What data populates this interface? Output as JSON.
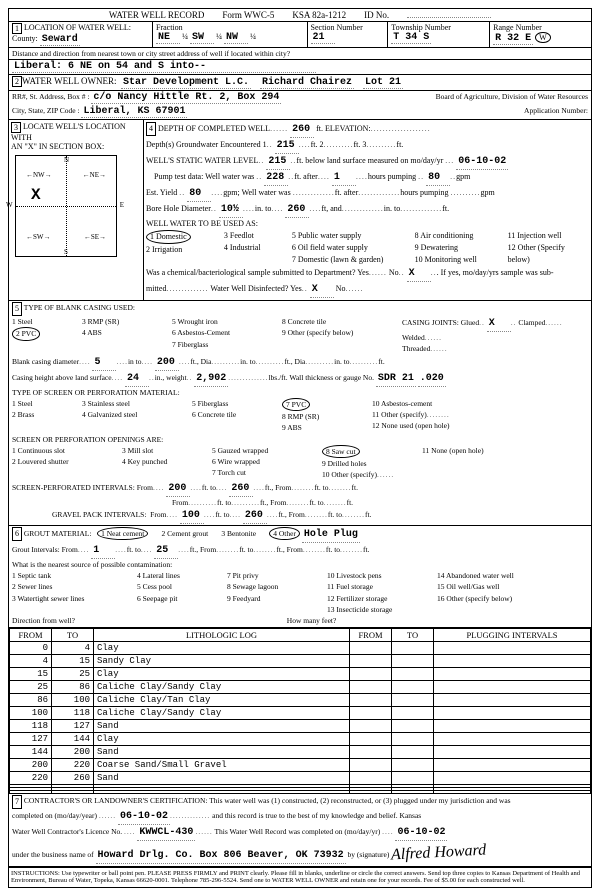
{
  "form": {
    "title": "WATER WELL RECORD",
    "form_no": "Form WWC-5",
    "ksa": "KSA 82a-1212",
    "id_label": "ID No."
  },
  "loc": {
    "county_label": "County:",
    "county": "Seward",
    "fraction_label": "Fraction",
    "f1": "NE",
    "f1a": "¼",
    "f2": "SW",
    "f2a": "¼",
    "f3": "NW",
    "f3a": "¼",
    "section_label": "Section Number",
    "section": "21",
    "township_label": "Township Number",
    "township": "T    34    S",
    "range_label": "Range Number",
    "range": "R    32    E",
    "range_dir": "W",
    "dir_label": "Distance and direction from nearest town or city street address of well if located within city?",
    "dir": "Liberal:  6 NE on 54 and S into--"
  },
  "owner": {
    "label": "WATER WELL OWNER:",
    "name": "Star Development L.C.",
    "name2": "Richard Chairez",
    "lot": "Lot 21",
    "addr_label": "RR#, St. Address, Box # :",
    "addr_care": "c/o Nancy Hittle   Rt. 2,  Box 294",
    "board": "Board of Agriculture, Division of Water Resources",
    "city_label": "City, State, ZIP Code :",
    "city": "Liberal,  KS   67901",
    "app": "Application Number:"
  },
  "s3_label": "LOCATE WELL'S LOCATION WITH",
  "s3_sub": "AN \"X\" IN SECTION BOX:",
  "depth": {
    "label": "DEPTH OF COMPLETED WELL",
    "completed": "260",
    "elev_label": "ft. ELEVATION:",
    "gw_label": "Depth(s) Groundwater Encountered",
    "gw1": "215",
    "static_label": "WELL'S STATIC WATER LEVEL",
    "static": "215",
    "static_date": "06-10-02",
    "pump_label": "Pump test data:  Well water was",
    "pump_val": "228",
    "pump_hrs": "1",
    "pump_gpm": "80",
    "est_label": "Est. Yield",
    "est_yield": "80",
    "bore_label": "Bore Hole Diameter",
    "bore_dia": "10½",
    "bore_to": "260",
    "use_label": "WELL WATER TO BE USED AS:",
    "use_1": "1 Domestic",
    "use_2": "2 Irrigation",
    "use_3": "3 Feedlot",
    "use_4": "4 Industrial",
    "use_5": "5 Public water supply",
    "use_6": "6 Oil field water supply",
    "use_7": "7 Domestic (lawn & garden)",
    "use_8": "8 Air conditioning",
    "use_9": "9 Dewatering",
    "use_10": "10 Monitoring well",
    "use_11": "11 Injection well",
    "use_12": "12 Other (Specify below)",
    "chem_label": "Was a chemical/bacteriological sample submitted to Department? Yes",
    "chem_no": "X",
    "disinfect": "Water Well Disinfected?  Yes",
    "disinfect_x": "X"
  },
  "casing": {
    "label": "TYPE OF BLANK CASING USED:",
    "o1": "1 Steel",
    "o2": "2 PVC",
    "o3": "3 RMP (SR)",
    "o4": "4 ABS",
    "o5": "5 Wrought iron",
    "o6": "6 Asbestos-Cement",
    "o7": "7 Fiberglass",
    "o8": "8 Concrete tile",
    "o9": "9 Other (specify below)",
    "joints_label": "CASING JOINTS: Glued",
    "joints_glued": "X",
    "joints_clamped": "Clamped",
    "welded": "Welded",
    "threaded": "Threaded",
    "dia_label": "Blank casing diameter",
    "dia": "5",
    "dia_to": "200",
    "height_label": "Casing height above land surface",
    "height": "24",
    "weight": "2,902",
    "sdr": "SDR 21",
    "thick": ".020"
  },
  "screen": {
    "label": "TYPE OF SCREEN OR PERFORATION MATERIAL:",
    "o1": "1 Steel",
    "o2": "2 Brass",
    "o3": "3 Stainless steel",
    "o4": "4 Galvanized steel",
    "o5": "5 Fiberglass",
    "o6": "6 Concrete tile",
    "o7": "7 PVC",
    "o8": "8 RMP (SR)",
    "o9": "9 ABS",
    "o10": "10 Asbestos-cement",
    "o11": "11 Other (specify)",
    "o12": "12 None used (open hole)",
    "open_label": "SCREEN OR PERFORATION OPENINGS ARE:",
    "p1": "1 Continuous slot",
    "p2": "2 Louvered shutter",
    "p3": "3 Mill slot",
    "p4": "4 Key punched",
    "p5": "5 Gauzed wrapped",
    "p6": "6 Wire wrapped",
    "p7": "7 Torch cut",
    "p8": "8 Saw cut",
    "p9": "9 Drilled holes",
    "p10": "10 Other (specify)",
    "p11": "11 None (open hole)",
    "perf_label": "SCREEN-PERFORATED INTERVALS:  From",
    "perf_from": "200",
    "perf_to": "260",
    "gravel_label": "GRAVEL PACK INTERVALS:",
    "gravel_from": "100",
    "gravel_to": "260"
  },
  "grout": {
    "label": "GROUT MATERIAL:",
    "o1": "1 Neat cement",
    "o2": "2 Cement grout",
    "o3": "3 Bentonite",
    "o4": "4 Other",
    "other_text": "Hole Plug",
    "int_label": "Grout Intervals:  From",
    "from": "1",
    "to": "25",
    "contam_label": "What is the nearest source of possible contamination:",
    "c1": "1 Septic tank",
    "c2": "2 Sewer lines",
    "c3": "3 Watertight sewer lines",
    "c4": "4 Lateral lines",
    "c5": "5 Cess pool",
    "c6": "6 Seepage pit",
    "c7": "7 Pit privy",
    "c8": "8 Sewage lagoon",
    "c9": "9 Feedyard",
    "c10": "10 Livestock pens",
    "c11": "11 Fuel storage",
    "c12": "12 Fertilizer storage",
    "c13": "13 Insecticide storage",
    "c14": "14 Abandoned water well",
    "c15": "15 Oil well/Gas well",
    "c16": "16 Other (specify below)",
    "dir_label": "Direction from well?",
    "feet_label": "How many feet?"
  },
  "log": {
    "h_from": "FROM",
    "h_to": "TO",
    "h_lith": "LITHOLOGIC LOG",
    "h_from2": "FROM",
    "h_to2": "TO",
    "h_plug": "PLUGGING INTERVALS",
    "rows": [
      {
        "from": "0",
        "to": "4",
        "desc": "Clay"
      },
      {
        "from": "4",
        "to": "15",
        "desc": "Sandy Clay"
      },
      {
        "from": "15",
        "to": "25",
        "desc": "Clay"
      },
      {
        "from": "25",
        "to": "86",
        "desc": "Caliche Clay/Sandy Clay"
      },
      {
        "from": "86",
        "to": "100",
        "desc": "Caliche Clay/Tan Clay"
      },
      {
        "from": "100",
        "to": "118",
        "desc": "Caliche Clay/Sandy Clay"
      },
      {
        "from": "118",
        "to": "127",
        "desc": "Sand"
      },
      {
        "from": "127",
        "to": "144",
        "desc": "Clay"
      },
      {
        "from": "144",
        "to": "200",
        "desc": "Sand"
      },
      {
        "from": "200",
        "to": "220",
        "desc": "Coarse Sand/Small Gravel"
      },
      {
        "from": "220",
        "to": "260",
        "desc": "Sand"
      }
    ]
  },
  "cert": {
    "label": "CONTRACTOR'S OR LANDOWNER'S CERTIFICATION: This water well was (1) constructed, (2) reconstructed, or (3) plugged under my jurisdiction and was",
    "date_label": "completed on (mo/day/year)",
    "date": "06-10-02",
    "record_text": "and this record is true to the best of my knowledge and belief. Kansas",
    "lic_label": "Water Well Contractor's Licence No.",
    "lic": "KWWCL-430",
    "completed_label": "This Water Well Record was completed on (mo/day/yr)",
    "completed": "06-10-02",
    "business_label": "under the business name of",
    "business": "Howard Drlg. Co. Box 806  Beaver, OK 73932",
    "by": "by (signature)"
  },
  "instructions": "INSTRUCTIONS: Use typewriter or ball point pen. PLEASE PRESS FIRMLY and PRINT clearly. Please fill in blanks, underline or circle the correct answers. Send top three copies to Kansas Department of Health and Environment, Bureau of Water, Topeka, Kansas 66620-0001. Telephone 785-296-5524. Send one to WATER WELL OWNER and retain one for your records. Fee of $5.00 for each constructed well."
}
